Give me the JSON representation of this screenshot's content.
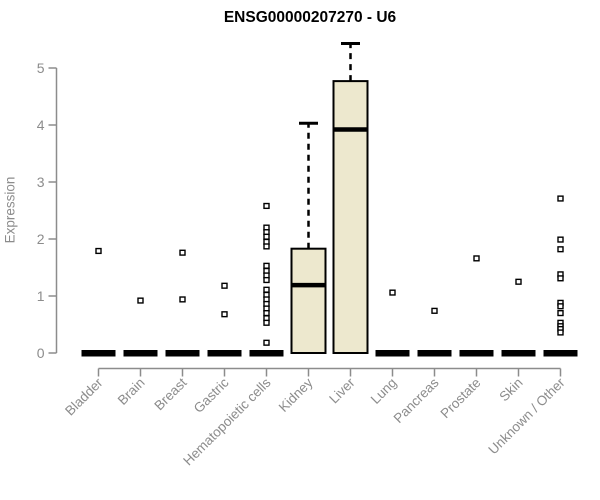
{
  "title": "ENSG00000207270 - U6",
  "chart_data": {
    "type": "boxplot",
    "title": "ENSG00000207270 - U6",
    "xlabel": "",
    "ylabel": "Expression",
    "ylim": [
      0,
      5.5
    ],
    "yticks": [
      0,
      1,
      2,
      3,
      4,
      5
    ],
    "grid": false,
    "legend": false,
    "categories": [
      "Bladder",
      "Brain",
      "Breast",
      "Gastric",
      "Hematopoietic cells",
      "Kidney",
      "Liver",
      "Lung",
      "Pancreas",
      "Prostate",
      "Skin",
      "Unknown / Other"
    ],
    "series": [
      {
        "name": "Bladder",
        "q1": 0,
        "median": 0,
        "q3": 0,
        "whisker_low": 0,
        "whisker_high": 0,
        "outliers": [
          1.79
        ]
      },
      {
        "name": "Brain",
        "q1": 0,
        "median": 0,
        "q3": 0,
        "whisker_low": 0,
        "whisker_high": 0,
        "outliers": [
          0.92
        ]
      },
      {
        "name": "Breast",
        "q1": 0,
        "median": 0,
        "q3": 0,
        "whisker_low": 0,
        "whisker_high": 0,
        "outliers": [
          1.76,
          0.94
        ]
      },
      {
        "name": "Gastric",
        "q1": 0,
        "median": 0,
        "q3": 0,
        "whisker_low": 0,
        "whisker_high": 0,
        "outliers": [
          1.18,
          0.68
        ]
      },
      {
        "name": "Hematopoietic cells",
        "q1": 0,
        "median": 0,
        "q3": 0,
        "whisker_low": 0,
        "whisker_high": 0,
        "outliers": [
          2.58,
          2.2,
          2.12,
          2.04,
          1.95,
          1.87,
          1.53,
          1.44,
          1.36,
          1.28,
          1.11,
          1.02,
          0.94,
          0.86,
          0.78,
          0.7,
          0.61,
          0.53,
          0.18
        ]
      },
      {
        "name": "Kidney",
        "q1": 0,
        "median": 1.19,
        "q3": 1.83,
        "whisker_low": 0,
        "whisker_high": 4.03,
        "outliers": []
      },
      {
        "name": "Liver",
        "q1": 0,
        "median": 3.92,
        "q3": 4.77,
        "whisker_low": 0,
        "whisker_high": 5.43,
        "outliers": []
      },
      {
        "name": "Lung",
        "q1": 0,
        "median": 0,
        "q3": 0,
        "whisker_low": 0,
        "whisker_high": 0,
        "outliers": [
          1.06
        ]
      },
      {
        "name": "Pancreas",
        "q1": 0,
        "median": 0,
        "q3": 0,
        "whisker_low": 0,
        "whisker_high": 0,
        "outliers": [
          0.74
        ]
      },
      {
        "name": "Prostate",
        "q1": 0,
        "median": 0,
        "q3": 0,
        "whisker_low": 0,
        "whisker_high": 0,
        "outliers": [
          1.66
        ]
      },
      {
        "name": "Skin",
        "q1": 0,
        "median": 0,
        "q3": 0,
        "whisker_low": 0,
        "whisker_high": 0,
        "outliers": [
          1.25
        ]
      },
      {
        "name": "Unknown / Other",
        "q1": 0,
        "median": 0,
        "q3": 0,
        "whisker_low": 0,
        "whisker_high": 0,
        "outliers": [
          2.71,
          1.99,
          1.82,
          1.38,
          1.31,
          0.88,
          0.82,
          0.7,
          0.53,
          0.47,
          0.42,
          0.36
        ]
      }
    ],
    "colors": {
      "box_fill": "#EDE8CE",
      "box_stroke": "#000000",
      "median": "#000000",
      "outlier_stroke": "#000000",
      "outlier_fill": "#FFFFFF",
      "axis": "#8C8C8C",
      "tick_label": "#8C8C8C",
      "title": "#000000",
      "background": "#FFFFFF"
    }
  }
}
